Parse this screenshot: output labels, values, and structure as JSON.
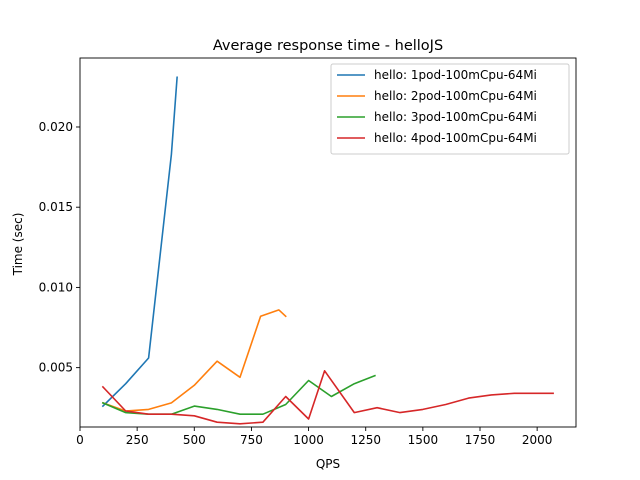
{
  "chart_data": {
    "type": "line",
    "title": "Average response time - helloJS",
    "xlabel": "QPS",
    "ylabel": "Time (sec)",
    "xlim": [
      0,
      2170
    ],
    "ylim": [
      0.0013,
      0.0243
    ],
    "xticks": [
      0,
      250,
      500,
      750,
      1000,
      1250,
      1500,
      1750,
      2000
    ],
    "yticks": [
      0.005,
      0.01,
      0.015,
      0.02
    ],
    "xtick_labels": [
      "0",
      "250",
      "500",
      "750",
      "1000",
      "1250",
      "1500",
      "1750",
      "2000"
    ],
    "ytick_labels": [
      "0.005",
      "0.010",
      "0.015",
      "0.020"
    ],
    "grid": false,
    "legend_position": "top-right",
    "series": [
      {
        "name": "hello: 1pod-100mCpu-64Mi",
        "color": "#1f77b4",
        "x": [
          100,
          200,
          300,
          400,
          425
        ],
        "y": [
          0.0026,
          0.004,
          0.0056,
          0.0183,
          0.0231
        ]
      },
      {
        "name": "hello: 2pod-100mCpu-64Mi",
        "color": "#ff7f0e",
        "x": [
          100,
          200,
          300,
          400,
          500,
          600,
          700,
          790,
          870,
          900
        ],
        "y": [
          0.0028,
          0.0023,
          0.0024,
          0.0028,
          0.0039,
          0.0054,
          0.0044,
          0.0082,
          0.0086,
          0.0082
        ]
      },
      {
        "name": "hello: 3pod-100mCpu-64Mi",
        "color": "#2ca02c",
        "x": [
          100,
          200,
          300,
          400,
          500,
          600,
          700,
          800,
          900,
          1000,
          1100,
          1200,
          1290
        ],
        "y": [
          0.0028,
          0.0022,
          0.0021,
          0.0021,
          0.0026,
          0.0024,
          0.0021,
          0.0021,
          0.0027,
          0.0042,
          0.0032,
          0.004,
          0.0045
        ]
      },
      {
        "name": "hello: 4pod-100mCpu-64Mi",
        "color": "#d62728",
        "x": [
          100,
          200,
          300,
          400,
          500,
          600,
          700,
          800,
          900,
          1000,
          1070,
          1200,
          1300,
          1400,
          1500,
          1600,
          1700,
          1800,
          1900,
          2000,
          2070
        ],
        "y": [
          0.0038,
          0.0023,
          0.0021,
          0.0021,
          0.002,
          0.0016,
          0.0015,
          0.0016,
          0.0032,
          0.0018,
          0.0048,
          0.0022,
          0.0025,
          0.0022,
          0.0024,
          0.0027,
          0.0031,
          0.0033,
          0.0034,
          0.0034,
          0.0034
        ]
      }
    ]
  }
}
